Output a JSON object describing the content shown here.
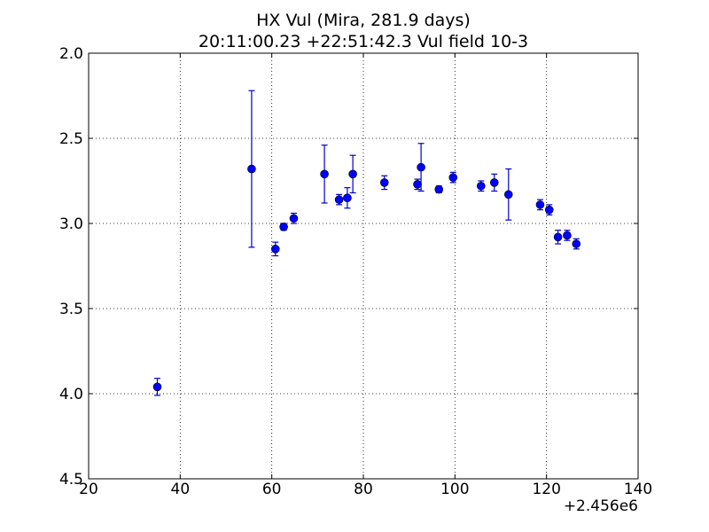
{
  "chart_data": {
    "type": "scatter",
    "title": "HX Vul (Mira, 281.9 days)",
    "subtitle": "20:11:00.23 +22:51:42.3 Vul field 10-3",
    "xlabel": "",
    "ylabel": "",
    "x_offset_label": "+2.456e6",
    "xlim": [
      20,
      140
    ],
    "ylim": [
      4.5,
      2.0
    ],
    "y_inverted": true,
    "grid": true,
    "x_ticks": [
      "20",
      "40",
      "60",
      "80",
      "100",
      "120",
      "140"
    ],
    "y_ticks": [
      "2.0",
      "2.5",
      "3.0",
      "3.5",
      "4.0",
      "4.5"
    ],
    "marker_color": "#0000ff",
    "errorbar_color": "#0000cc",
    "series": [
      {
        "points": [
          {
            "x": 35.0,
            "y": 3.96,
            "err": 0.05
          },
          {
            "x": 55.6,
            "y": 2.68,
            "err": 0.46
          },
          {
            "x": 60.8,
            "y": 3.15,
            "err": 0.04
          },
          {
            "x": 62.6,
            "y": 3.02,
            "err": 0.02
          },
          {
            "x": 64.8,
            "y": 2.97,
            "err": 0.03
          },
          {
            "x": 71.5,
            "y": 2.71,
            "err": 0.17
          },
          {
            "x": 74.7,
            "y": 2.86,
            "err": 0.03
          },
          {
            "x": 76.5,
            "y": 2.85,
            "err": 0.06
          },
          {
            "x": 77.7,
            "y": 2.71,
            "err": 0.11
          },
          {
            "x": 84.6,
            "y": 2.76,
            "err": 0.04
          },
          {
            "x": 91.8,
            "y": 2.77,
            "err": 0.03
          },
          {
            "x": 92.6,
            "y": 2.67,
            "err": 0.14
          },
          {
            "x": 96.5,
            "y": 2.8,
            "err": 0.02
          },
          {
            "x": 99.6,
            "y": 2.73,
            "err": 0.03
          },
          {
            "x": 105.7,
            "y": 2.78,
            "err": 0.03
          },
          {
            "x": 108.6,
            "y": 2.76,
            "err": 0.05
          },
          {
            "x": 111.7,
            "y": 2.83,
            "err": 0.15
          },
          {
            "x": 118.6,
            "y": 2.89,
            "err": 0.03
          },
          {
            "x": 120.6,
            "y": 2.92,
            "err": 0.03
          },
          {
            "x": 122.5,
            "y": 3.08,
            "err": 0.04
          },
          {
            "x": 124.5,
            "y": 3.07,
            "err": 0.03
          },
          {
            "x": 126.5,
            "y": 3.12,
            "err": 0.03
          }
        ]
      }
    ]
  }
}
